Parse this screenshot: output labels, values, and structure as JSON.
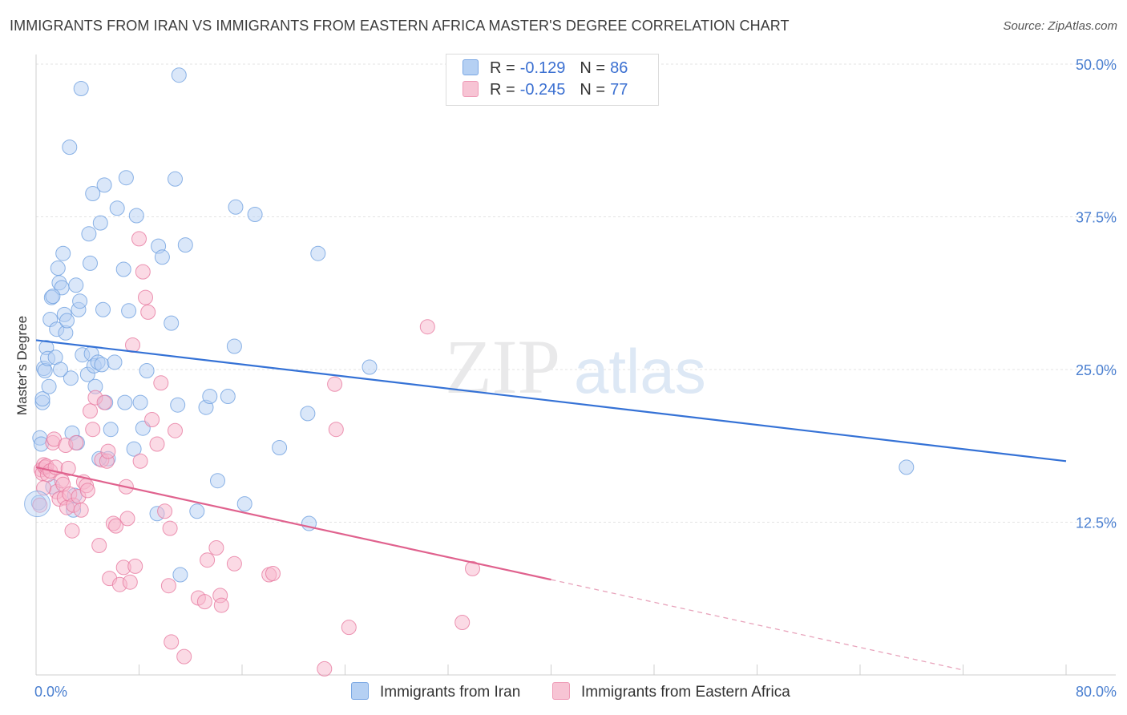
{
  "title": "IMMIGRANTS FROM IRAN VS IMMIGRANTS FROM EASTERN AFRICA MASTER'S DEGREE CORRELATION CHART",
  "source": "Source: ZipAtlas.com",
  "watermark": {
    "zip": "ZIP",
    "atlas": "atlas"
  },
  "legend": {
    "rows": [
      {
        "r_label": "R =",
        "r_value": "-0.129",
        "n_label": "N =",
        "n_value": "86",
        "color": "#a9c8f2"
      },
      {
        "r_label": "R =",
        "r_value": "-0.245",
        "n_label": "N =",
        "n_value": "77",
        "color": "#f7b6cb"
      }
    ]
  },
  "chart_data": {
    "type": "scatter",
    "title": "IMMIGRANTS FROM IRAN VS IMMIGRANTS FROM EASTERN AFRICA MASTER'S DEGREE CORRELATION CHART",
    "xlabel": "",
    "ylabel": "Master's Degree",
    "xlim": [
      0,
      80
    ],
    "ylim": [
      0,
      50
    ],
    "x_tick_labels": [
      "0.0%",
      "80.0%"
    ],
    "y_tick_labels": [
      "12.5%",
      "25.0%",
      "37.5%",
      "50.0%"
    ],
    "y_ticks": [
      12.5,
      25.0,
      37.5,
      50.0
    ],
    "grid": true,
    "legend_position": "bottom",
    "series": [
      {
        "name": "Immigrants from Iran",
        "color": "#6fa0e0",
        "fill": "#b5d0f3",
        "trend": {
          "x": [
            0,
            80
          ],
          "y": [
            27.4,
            17.5
          ]
        },
        "points": [
          [
            0.3,
            19.4
          ],
          [
            0.4,
            18.9
          ],
          [
            0.5,
            22.3
          ],
          [
            0.5,
            22.6
          ],
          [
            0.6,
            25.1
          ],
          [
            0.7,
            24.9
          ],
          [
            0.8,
            26.8
          ],
          [
            0.9,
            25.9
          ],
          [
            1.0,
            23.6
          ],
          [
            1.1,
            29.1
          ],
          [
            1.2,
            30.9
          ],
          [
            1.3,
            15.4
          ],
          [
            1.5,
            26.0
          ],
          [
            1.6,
            28.3
          ],
          [
            1.7,
            33.3
          ],
          [
            1.8,
            32.1
          ],
          [
            2.0,
            31.7
          ],
          [
            2.1,
            34.5
          ],
          [
            2.2,
            29.5
          ],
          [
            2.3,
            28.0
          ],
          [
            2.6,
            43.2
          ],
          [
            2.7,
            24.3
          ],
          [
            2.8,
            19.8
          ],
          [
            2.9,
            13.5
          ],
          [
            3.0,
            14.7
          ],
          [
            3.1,
            31.9
          ],
          [
            3.2,
            19.0
          ],
          [
            3.3,
            29.9
          ],
          [
            3.4,
            30.6
          ],
          [
            3.6,
            26.2
          ],
          [
            4.0,
            24.6
          ],
          [
            4.1,
            36.1
          ],
          [
            4.2,
            33.7
          ],
          [
            4.3,
            26.3
          ],
          [
            4.4,
            39.4
          ],
          [
            4.5,
            25.3
          ],
          [
            4.6,
            23.6
          ],
          [
            4.8,
            25.6
          ],
          [
            5.0,
            37.0
          ],
          [
            5.1,
            25.4
          ],
          [
            5.2,
            29.9
          ],
          [
            5.3,
            40.1
          ],
          [
            5.4,
            22.3
          ],
          [
            5.6,
            17.7
          ],
          [
            5.8,
            20.1
          ],
          [
            6.3,
            38.2
          ],
          [
            6.8,
            33.2
          ],
          [
            6.9,
            22.3
          ],
          [
            7.0,
            40.7
          ],
          [
            7.2,
            29.8
          ],
          [
            7.6,
            18.5
          ],
          [
            7.8,
            37.6
          ],
          [
            8.1,
            22.3
          ],
          [
            8.3,
            20.2
          ],
          [
            8.6,
            24.9
          ],
          [
            9.5,
            35.1
          ],
          [
            9.8,
            34.2
          ],
          [
            10.5,
            28.8
          ],
          [
            11.0,
            22.1
          ],
          [
            11.2,
            8.2
          ],
          [
            11.6,
            35.2
          ],
          [
            12.5,
            13.4
          ],
          [
            13.2,
            21.9
          ],
          [
            13.5,
            22.8
          ],
          [
            14.1,
            15.9
          ],
          [
            14.9,
            22.8
          ],
          [
            15.4,
            26.9
          ],
          [
            15.5,
            38.3
          ],
          [
            16.2,
            14.0
          ],
          [
            17.0,
            37.7
          ],
          [
            18.9,
            18.6
          ],
          [
            21.1,
            21.4
          ],
          [
            21.2,
            12.4
          ],
          [
            21.9,
            34.5
          ],
          [
            25.9,
            25.2
          ],
          [
            67.6,
            17.0
          ],
          [
            0.2,
            14.1
          ],
          [
            3.5,
            48.0
          ],
          [
            11.1,
            49.1
          ],
          [
            10.8,
            40.6
          ],
          [
            1.3,
            31.0
          ],
          [
            2.4,
            29.0
          ],
          [
            6.1,
            25.6
          ],
          [
            4.9,
            17.7
          ],
          [
            1.9,
            25.0
          ],
          [
            9.4,
            13.2
          ]
        ]
      },
      {
        "name": "Immigrants from Eastern Africa",
        "color": "#e77aa0",
        "fill": "#f7b6cb",
        "trend": {
          "x": [
            0,
            40
          ],
          "y": [
            17.0,
            7.8
          ],
          "dashed_to": [
            72,
            0.4
          ]
        },
        "points": [
          [
            0.3,
            13.9
          ],
          [
            0.4,
            16.8
          ],
          [
            0.5,
            16.5
          ],
          [
            0.6,
            17.2
          ],
          [
            0.7,
            17.0
          ],
          [
            0.8,
            17.1
          ],
          [
            0.9,
            16.4
          ],
          [
            1.1,
            16.7
          ],
          [
            1.3,
            19.0
          ],
          [
            1.4,
            19.3
          ],
          [
            1.5,
            17.0
          ],
          [
            1.6,
            15.0
          ],
          [
            1.8,
            14.4
          ],
          [
            2.0,
            15.9
          ],
          [
            2.1,
            15.6
          ],
          [
            2.2,
            14.5
          ],
          [
            2.3,
            18.8
          ],
          [
            2.4,
            13.7
          ],
          [
            2.5,
            16.9
          ],
          [
            2.6,
            14.8
          ],
          [
            2.8,
            11.8
          ],
          [
            2.9,
            13.9
          ],
          [
            3.1,
            19.0
          ],
          [
            3.3,
            14.6
          ],
          [
            3.5,
            13.5
          ],
          [
            3.7,
            15.8
          ],
          [
            3.9,
            15.5
          ],
          [
            4.0,
            15.1
          ],
          [
            4.2,
            21.6
          ],
          [
            4.4,
            20.1
          ],
          [
            4.6,
            22.7
          ],
          [
            4.9,
            10.6
          ],
          [
            5.1,
            17.6
          ],
          [
            5.3,
            22.3
          ],
          [
            5.5,
            17.5
          ],
          [
            5.6,
            18.3
          ],
          [
            5.7,
            7.9
          ],
          [
            6.0,
            12.4
          ],
          [
            6.2,
            12.2
          ],
          [
            6.5,
            7.4
          ],
          [
            6.8,
            8.8
          ],
          [
            7.0,
            15.4
          ],
          [
            7.1,
            12.8
          ],
          [
            7.3,
            7.6
          ],
          [
            7.5,
            27.0
          ],
          [
            7.7,
            8.9
          ],
          [
            8.0,
            35.7
          ],
          [
            8.1,
            17.5
          ],
          [
            8.3,
            33.0
          ],
          [
            8.5,
            30.9
          ],
          [
            8.7,
            29.7
          ],
          [
            9.0,
            20.9
          ],
          [
            9.4,
            18.9
          ],
          [
            9.7,
            23.9
          ],
          [
            10.0,
            13.4
          ],
          [
            10.3,
            7.3
          ],
          [
            10.4,
            12.0
          ],
          [
            10.5,
            2.7
          ],
          [
            10.8,
            20.0
          ],
          [
            11.5,
            1.5
          ],
          [
            12.6,
            6.3
          ],
          [
            13.1,
            6.0
          ],
          [
            13.3,
            9.4
          ],
          [
            14.0,
            10.4
          ],
          [
            14.3,
            6.5
          ],
          [
            14.4,
            5.7
          ],
          [
            15.4,
            9.1
          ],
          [
            18.1,
            8.2
          ],
          [
            18.4,
            8.3
          ],
          [
            22.4,
            0.5
          ],
          [
            23.2,
            23.8
          ],
          [
            23.3,
            20.1
          ],
          [
            24.3,
            3.9
          ],
          [
            30.4,
            28.5
          ],
          [
            33.1,
            4.3
          ],
          [
            33.9,
            8.7
          ],
          [
            0.6,
            15.3
          ]
        ]
      }
    ]
  }
}
